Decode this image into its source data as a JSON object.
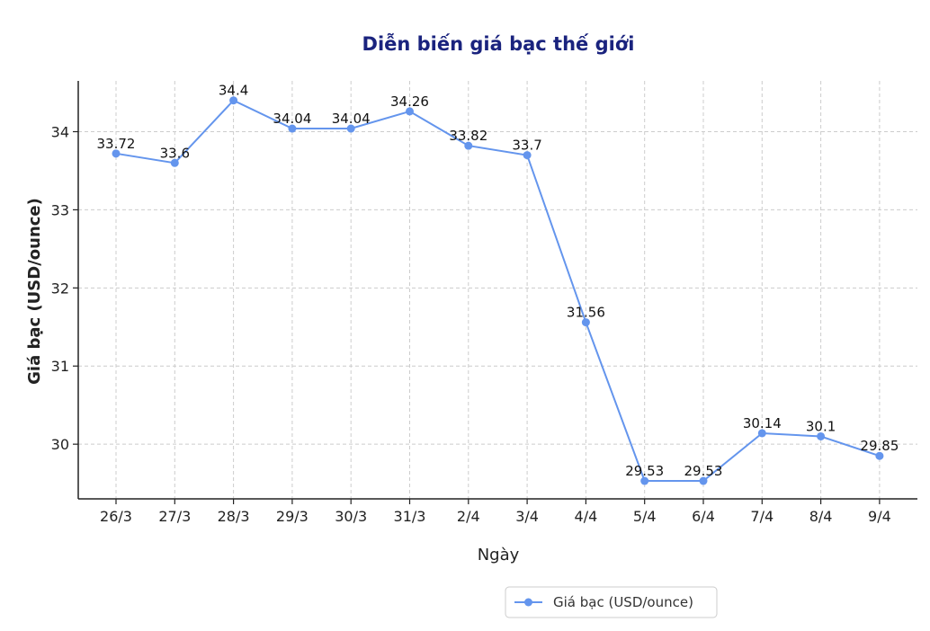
{
  "chart_data": {
    "type": "line",
    "title": "Diễn biến giá bạc thế giới",
    "xlabel": "Ngày",
    "ylabel": "Giá bạc (USD/ounce)",
    "categories": [
      "26/3",
      "27/3",
      "28/3",
      "29/3",
      "30/3",
      "31/3",
      "2/4",
      "3/4",
      "4/4",
      "5/4",
      "6/4",
      "7/4",
      "8/4",
      "9/4"
    ],
    "series": [
      {
        "name": "Giá bạc (USD/ounce)",
        "values": [
          33.72,
          33.6,
          34.4,
          34.04,
          34.04,
          34.26,
          33.82,
          33.7,
          31.56,
          29.53,
          29.53,
          30.14,
          30.1,
          29.85
        ],
        "data_labels": [
          "33.72",
          "33.6",
          "34.4",
          "34.04",
          "34.04",
          "34.26",
          "33.82",
          "33.7",
          "31.56",
          "29.53",
          "29.53",
          "30.14",
          "30.1",
          "29.85"
        ]
      }
    ],
    "yticks": [
      "30",
      "31",
      "32",
      "33",
      "34"
    ],
    "ytick_values": [
      30,
      31,
      32,
      33,
      34
    ],
    "ylim": [
      29.3,
      34.65
    ],
    "grid": true,
    "legend_position": "bottom-right",
    "line_color": "#6495ED"
  }
}
